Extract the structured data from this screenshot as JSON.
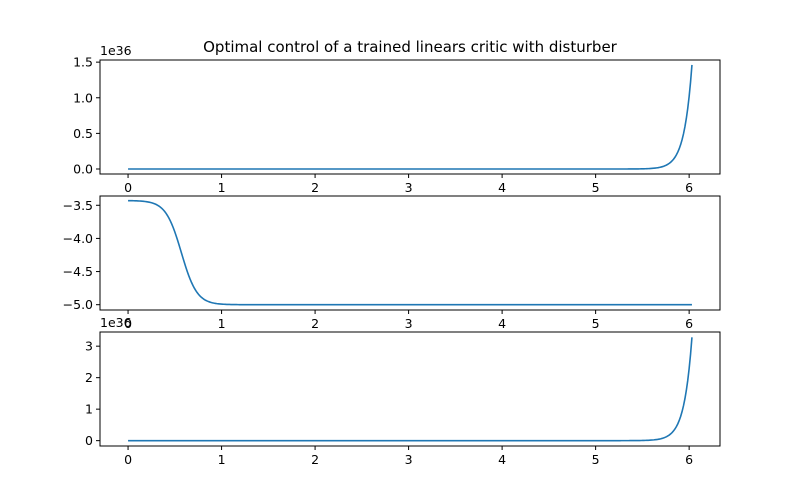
{
  "title": "Optimal control of a trained linears critic with disturber",
  "chart_data": [
    {
      "type": "line",
      "x_range": [
        0,
        6.03
      ],
      "xlim": [
        -0.3,
        6.33
      ],
      "x_ticks": [
        0,
        1,
        2,
        3,
        4,
        5,
        6
      ],
      "x_tick_labels": [
        "0",
        "1",
        "2",
        "3",
        "4",
        "5",
        "6"
      ],
      "ylim": [
        -0.07,
        1.53
      ],
      "y_ticks": [
        0.0,
        0.5,
        1.0,
        1.5
      ],
      "y_tick_labels": [
        "0.0",
        "0.5",
        "1.0",
        "1.5"
      ],
      "offset_label": "1e36",
      "curve": "exponential-growth",
      "y_start": 0.0,
      "y_end": 1.46,
      "color": "#1f77b4"
    },
    {
      "type": "line",
      "x_range": [
        0,
        6.03
      ],
      "xlim": [
        -0.3,
        6.33
      ],
      "x_ticks": [
        0,
        1,
        2,
        3,
        4,
        5,
        6
      ],
      "x_tick_labels": [
        "0",
        "1",
        "2",
        "3",
        "4",
        "5",
        "6"
      ],
      "ylim": [
        -5.08,
        -3.36
      ],
      "y_ticks": [
        -5.0,
        -4.5,
        -4.0,
        -3.5
      ],
      "y_tick_labels": [
        "−5.0",
        "−4.5",
        "−4.0",
        "−3.5"
      ],
      "offset_label": "",
      "curve": "sigmoid-decay",
      "y_start": -3.43,
      "y_end": -5.0,
      "transition_x": 0.57,
      "color": "#1f77b4"
    },
    {
      "type": "line",
      "x_range": [
        0,
        6.03
      ],
      "xlim": [
        -0.3,
        6.33
      ],
      "x_ticks": [
        0,
        1,
        2,
        3,
        4,
        5,
        6
      ],
      "x_tick_labels": [
        "0",
        "1",
        "2",
        "3",
        "4",
        "5",
        "6"
      ],
      "ylim": [
        -0.17,
        3.45
      ],
      "y_ticks": [
        0,
        1,
        2,
        3
      ],
      "y_tick_labels": [
        "0",
        "1",
        "2",
        "3"
      ],
      "offset_label": "1e36",
      "curve": "exponential-growth",
      "y_start": 0.0,
      "y_end": 3.28,
      "color": "#1f77b4"
    }
  ]
}
